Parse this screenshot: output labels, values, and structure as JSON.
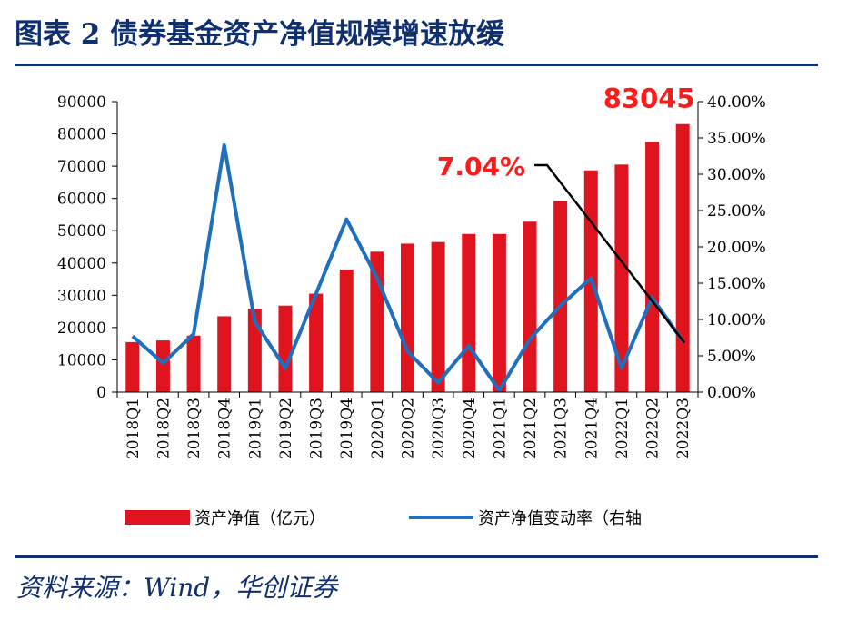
{
  "header": {
    "title": "图表 2  债券基金资产净值规模增速放缓"
  },
  "footer": {
    "source": "资料来源：Wind，华创证券"
  },
  "colors": {
    "bar": "#e0141e",
    "line": "#1f6fbf",
    "trend": "#000000",
    "annotation": "#ff1a1a",
    "title": "#0f2f6e"
  },
  "chart_data": {
    "type": "bar",
    "categories": [
      "2018Q1",
      "2018Q2",
      "2018Q3",
      "2018Q4",
      "2019Q1",
      "2019Q2",
      "2019Q3",
      "2019Q4",
      "2020Q1",
      "2020Q2",
      "2020Q3",
      "2020Q4",
      "2021Q1",
      "2021Q2",
      "2021Q3",
      "2021Q4",
      "2022Q1",
      "2022Q2",
      "2022Q3"
    ],
    "series": [
      {
        "name": "资产净值（亿元）",
        "type": "bar",
        "axis": "left",
        "values": [
          15500,
          16000,
          17500,
          23500,
          25800,
          26800,
          30500,
          38000,
          43500,
          46000,
          46500,
          49000,
          49000,
          52800,
          59300,
          68700,
          70500,
          77500,
          83045
        ]
      },
      {
        "name": "资产净值变动率（右轴",
        "type": "line",
        "axis": "right",
        "values": [
          0.077,
          0.04,
          0.08,
          0.34,
          0.097,
          0.033,
          0.135,
          0.238,
          0.157,
          0.056,
          0.013,
          0.064,
          0.002,
          0.073,
          0.119,
          0.157,
          0.033,
          0.13,
          0.0704
        ]
      }
    ],
    "left_axis": {
      "min": 0,
      "max": 90000,
      "ticks": [
        "0",
        "10000",
        "20000",
        "30000",
        "40000",
        "50000",
        "60000",
        "70000",
        "80000",
        "90000"
      ]
    },
    "right_axis": {
      "min": 0,
      "max": 0.4,
      "ticks": [
        "0.00%",
        "5.00%",
        "10.00%",
        "15.00%",
        "20.00%",
        "25.00%",
        "30.00%",
        "35.00%",
        "40.00%"
      ]
    },
    "annotations": {
      "last_value_label": "83045",
      "last_rate_label": "7.04%"
    },
    "grid": false,
    "legend_position": "bottom"
  }
}
